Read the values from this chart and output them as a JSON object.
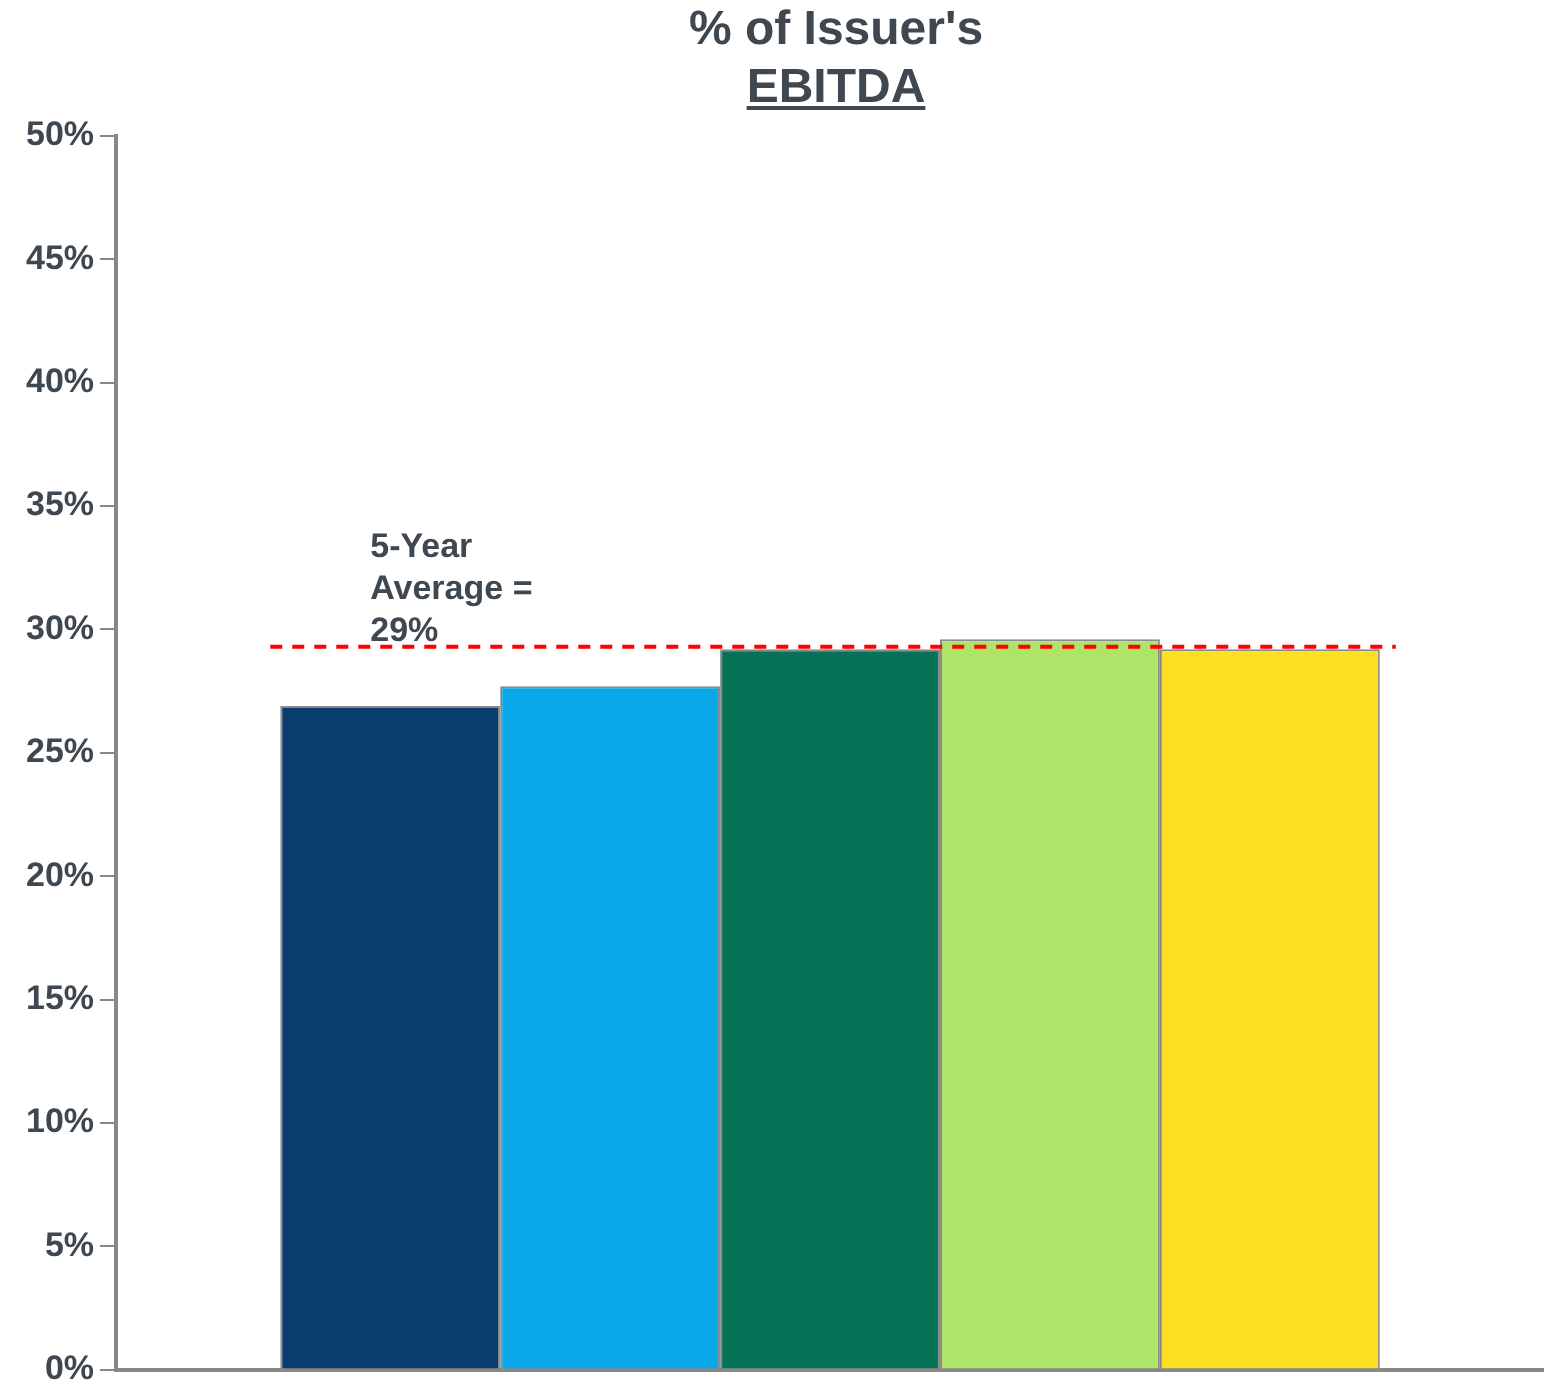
{
  "chart_data": {
    "type": "bar",
    "title": "% of Issuer's EBITDA",
    "categories": [
      null
    ],
    "series": [
      {
        "color": "#0a3d6e",
        "values": [
          26.9
        ]
      },
      {
        "color": "#0aa8e8",
        "values": [
          27.7
        ]
      },
      {
        "color": "#067356",
        "values": [
          29.2
        ]
      },
      {
        "color": "#aee468",
        "values": [
          29.6
        ]
      },
      {
        "color": "#fde024",
        "values": [
          29.2
        ]
      }
    ],
    "ylim": [
      0,
      50
    ],
    "yticks": [
      {
        "value": 0,
        "label": "0%"
      },
      {
        "value": 5,
        "label": "5%"
      },
      {
        "value": 10,
        "label": "10%"
      },
      {
        "value": 15,
        "label": "15%"
      },
      {
        "value": 20,
        "label": "20%"
      },
      {
        "value": 25,
        "label": "25%"
      },
      {
        "value": 30,
        "label": "30%"
      },
      {
        "value": 35,
        "label": "35%"
      },
      {
        "value": 40,
        "label": "40%"
      },
      {
        "value": 45,
        "label": "45%"
      },
      {
        "value": 50,
        "label": "50%"
      }
    ],
    "ref_lines": [
      {
        "axis": "y",
        "value": 29.3,
        "label": "5-Year Average = 29%",
        "color": "#ff0000",
        "line_style": "dashed"
      }
    ],
    "grid": false,
    "legend": false
  }
}
